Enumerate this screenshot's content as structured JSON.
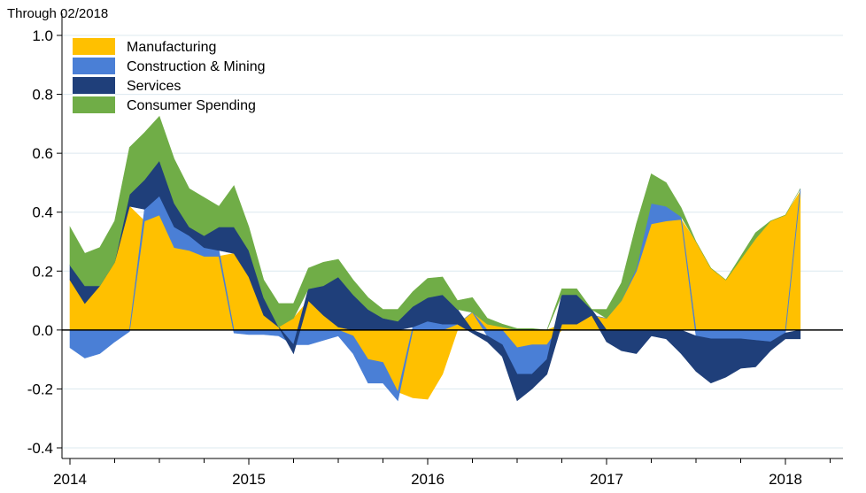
{
  "chart_data": {
    "type": "area",
    "note": "Through 02/2018",
    "title": "",
    "xlabel": "",
    "ylabel": "",
    "ylim": [
      -0.4,
      1.0
    ],
    "yticks": [
      "1.0",
      "0.8",
      "0.6",
      "0.4",
      "0.2",
      "0.0",
      "-0.2",
      "-0.4"
    ],
    "ytick_values": [
      1.0,
      0.8,
      0.6,
      0.4,
      0.2,
      0.0,
      -0.2,
      -0.4
    ],
    "xticks": [
      "2014",
      "2015",
      "2016",
      "2017",
      "2018"
    ],
    "xtick_values": [
      2014,
      2015,
      2016,
      2017,
      2018
    ],
    "x_minor_ticks": [
      2014.25,
      2014.5,
      2014.75,
      2015.25,
      2015.5,
      2015.75,
      2016.25,
      2016.5,
      2016.75,
      2017.25,
      2017.5,
      2017.75,
      2018.25
    ],
    "xlim": [
      2013.98,
      2018.33
    ],
    "grid": "horizontal",
    "legend_position": "top-left",
    "stacking": "stacked, positive and negative values stacked separately",
    "x": [
      2014.0,
      2014.0833,
      2014.1667,
      2014.25,
      2014.3333,
      2014.4167,
      2014.5,
      2014.5833,
      2014.6667,
      2014.75,
      2014.8333,
      2014.9167,
      2015.0,
      2015.0833,
      2015.1667,
      2015.25,
      2015.3333,
      2015.4167,
      2015.5,
      2015.5833,
      2015.6667,
      2015.75,
      2015.8333,
      2015.9167,
      2016.0,
      2016.0833,
      2016.1667,
      2016.25,
      2016.3333,
      2016.4167,
      2016.5,
      2016.5833,
      2016.6667,
      2016.75,
      2016.8333,
      2016.9167,
      2017.0,
      2017.0833,
      2017.1667,
      2017.25,
      2017.3333,
      2017.4167,
      2017.5,
      2017.5833,
      2017.6667,
      2017.75,
      2017.8333,
      2017.9167,
      2018.0,
      2018.0833
    ],
    "series": [
      {
        "name": "Manufacturing",
        "color": "#FFC000",
        "values": [
          0.17,
          0.09,
          0.15,
          0.23,
          0.42,
          0.37,
          0.39,
          0.28,
          0.27,
          0.25,
          0.25,
          0.26,
          0.18,
          0.05,
          0.01,
          0.04,
          0.1,
          0.05,
          0.01,
          -0.02,
          -0.1,
          -0.11,
          -0.21,
          -0.23,
          -0.235,
          -0.15,
          0.02,
          0.06,
          0.02,
          0.01,
          -0.06,
          -0.05,
          -0.05,
          0.02,
          0.02,
          0.05,
          0.04,
          0.1,
          0.2,
          0.36,
          0.37,
          0.375,
          0.3,
          0.21,
          0.17,
          0.24,
          0.31,
          0.37,
          0.39,
          0.47
        ]
      },
      {
        "name": "Construction & Mining",
        "color": "#4A7FD6",
        "values": [
          -0.06,
          -0.095,
          -0.08,
          -0.04,
          -0.005,
          0.04,
          0.065,
          0.07,
          0.05,
          0.03,
          0.02,
          -0.01,
          -0.015,
          -0.015,
          -0.02,
          -0.05,
          -0.05,
          -0.035,
          -0.02,
          -0.06,
          -0.08,
          -0.07,
          -0.03,
          0.01,
          0.03,
          0.02,
          0.0,
          0.0,
          -0.02,
          -0.05,
          -0.09,
          -0.1,
          -0.05,
          0.0,
          0.0,
          0.0,
          0.0,
          0.0,
          0.01,
          0.07,
          0.05,
          0.01,
          -0.02,
          -0.03,
          -0.03,
          -0.03,
          -0.035,
          -0.04,
          -0.01,
          0.01
        ]
      },
      {
        "name": "Services",
        "color": "#1F3F7A",
        "values": [
          0.05,
          0.06,
          0.0,
          0.0,
          0.04,
          0.1,
          0.12,
          0.08,
          0.03,
          0.04,
          0.08,
          0.09,
          0.09,
          0.06,
          0.0,
          -0.03,
          0.04,
          0.1,
          0.17,
          0.12,
          0.07,
          0.04,
          0.03,
          0.07,
          0.08,
          0.1,
          0.05,
          -0.01,
          -0.02,
          -0.04,
          -0.09,
          -0.05,
          -0.05,
          0.1,
          0.1,
          0.02,
          -0.04,
          -0.07,
          -0.08,
          -0.02,
          -0.03,
          -0.08,
          -0.12,
          -0.15,
          -0.13,
          -0.1,
          -0.09,
          -0.03,
          -0.02,
          -0.03
        ]
      },
      {
        "name": "Consumer Spending",
        "color": "#70AD47",
        "values": [
          0.13,
          0.11,
          0.13,
          0.14,
          0.16,
          0.16,
          0.15,
          0.15,
          0.13,
          0.13,
          0.07,
          0.14,
          0.08,
          0.06,
          0.08,
          0.05,
          0.07,
          0.08,
          0.06,
          0.05,
          0.04,
          0.03,
          0.04,
          0.05,
          0.065,
          0.06,
          0.03,
          0.05,
          0.02,
          0.01,
          0.005,
          0.005,
          0.0,
          0.02,
          0.02,
          0.0,
          0.03,
          0.06,
          0.15,
          0.1,
          0.08,
          0.03,
          0.0,
          0.0,
          0.0,
          0.01,
          0.02,
          0.0,
          0.0,
          0.0
        ]
      }
    ]
  }
}
